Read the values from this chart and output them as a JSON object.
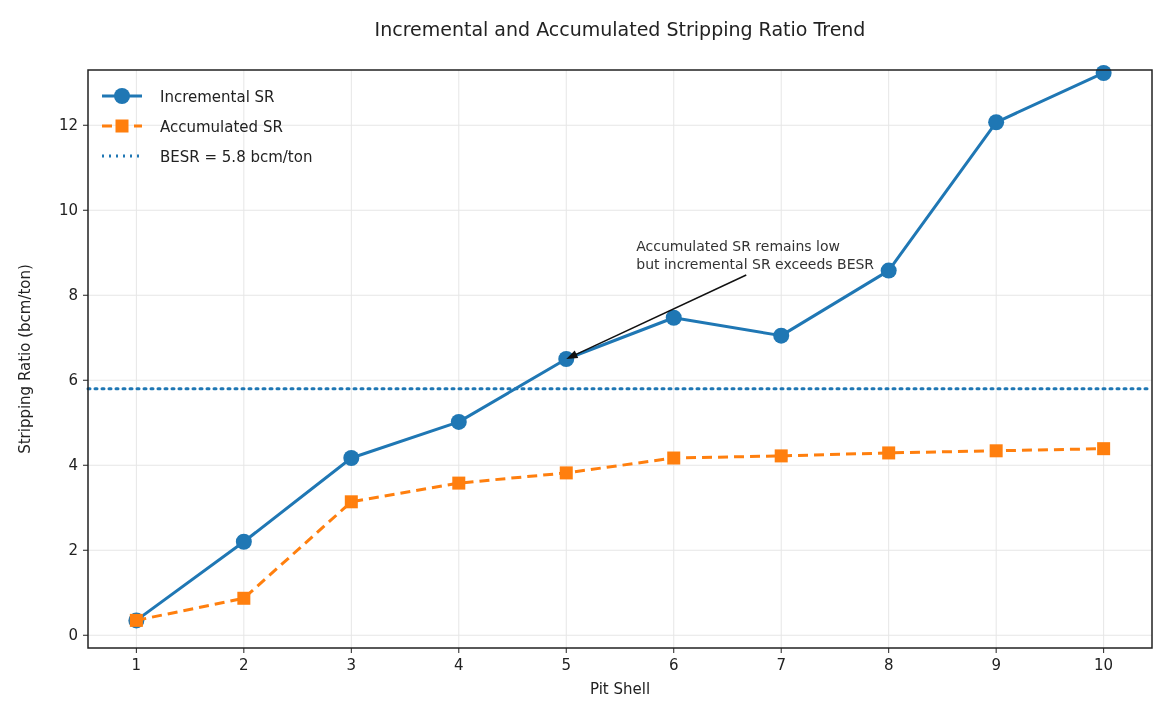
{
  "chart_data": {
    "type": "line",
    "title": "Incremental and Accumulated Stripping Ratio Trend",
    "xlabel": "Pit Shell",
    "ylabel": "Stripping Ratio (bcm/ton)",
    "x": [
      1,
      2,
      3,
      4,
      5,
      6,
      7,
      8,
      9,
      10
    ],
    "series": [
      {
        "name": "Incremental SR",
        "color": "#1f77b4",
        "marker": "circle",
        "line_style": "solid",
        "values": [
          0.35,
          2.2,
          4.17,
          5.02,
          6.5,
          7.47,
          7.05,
          8.58,
          12.07,
          13.23
        ]
      },
      {
        "name": "Accumulated SR",
        "color": "#ff7f0e",
        "marker": "square",
        "line_style": "dashed",
        "values": [
          0.35,
          0.87,
          3.14,
          3.58,
          3.82,
          4.17,
          4.22,
          4.29,
          4.34,
          4.39
        ]
      }
    ],
    "ref_lines": [
      {
        "axis": "y",
        "value": 5.8,
        "label": "BESR = 5.8 bcm/ton",
        "color": "#1f77b4",
        "line_style": "dotted"
      }
    ],
    "annotations": [
      {
        "text": "Accumulated SR remains low\nbut incremental SR exceeds BESR",
        "x": 5,
        "y": 6.5
      }
    ],
    "xlim": [
      0.55,
      10.45
    ],
    "ylim": [
      -0.3,
      13.3
    ],
    "xticks": [
      1,
      2,
      3,
      4,
      5,
      6,
      7,
      8,
      9,
      10
    ],
    "yticks": [
      0,
      2,
      4,
      6,
      8,
      10,
      12
    ],
    "grid": true,
    "legend": "top left"
  }
}
